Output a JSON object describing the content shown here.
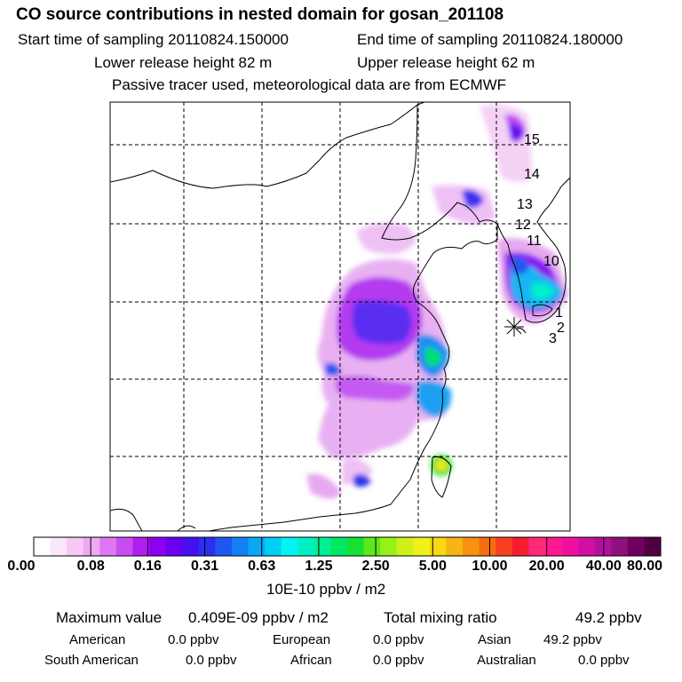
{
  "header": {
    "title": "CO  source contributions in nested domain for gosan_201108",
    "start_label": "Start time of sampling 20110824.150000",
    "end_label": "End time of sampling 20110824.180000",
    "lower_label": "Lower release height   82 m",
    "upper_label": "Upper release height   62 m",
    "tracer_label": "Passive tracer used, meteorological data are from ECMWF"
  },
  "map": {
    "trajectory_labels": [
      "15",
      "14",
      "13",
      "12",
      "11",
      "10",
      "1",
      "2",
      "3"
    ],
    "receptor_marker": "Gosan receptor"
  },
  "colorbar": {
    "labels": [
      "0.00",
      "0.08",
      "0.16",
      "0.31",
      "0.63",
      "1.25",
      "2.50",
      "5.00",
      "10.00",
      "20.00",
      "40.00",
      "80.00"
    ],
    "colors": [
      "#ffffff",
      "#fbe6fb",
      "#f6c8f6",
      "#efa8f2",
      "#de78f2",
      "#c94cf2",
      "#b21ef2",
      "#8d00f0",
      "#6a00f0",
      "#4410f0",
      "#2a2ff2",
      "#1f57f2",
      "#1480f4",
      "#0aa8f4",
      "#00cef4",
      "#00f4f4",
      "#00f0c4",
      "#00f094",
      "#00e860",
      "#18e034",
      "#5ce81c",
      "#98f01a",
      "#cef018",
      "#f0f01a",
      "#f8d810",
      "#f8b410",
      "#f89010",
      "#f86c10",
      "#f84020",
      "#f81c30",
      "#ff2a78",
      "#ff1890",
      "#f010a0",
      "#d010a0",
      "#b0109c",
      "#901080",
      "#700060",
      "#500040"
    ],
    "unit": "10E-10 ppbv / m2"
  },
  "summary": {
    "max_label": "Maximum value",
    "max_value": "0.409E-09 ppbv / m2",
    "total_label": "Total mixing ratio",
    "total_value": "49.2 ppbv",
    "regions": [
      {
        "name": "American",
        "value": "0.0 ppbv"
      },
      {
        "name": "European",
        "value": "0.0 ppbv"
      },
      {
        "name": "Asian",
        "value": "49.2 ppbv"
      },
      {
        "name": "South American",
        "value": "0.0 ppbv"
      },
      {
        "name": "African",
        "value": "0.0 ppbv"
      },
      {
        "name": "Australian",
        "value": "0.0 ppbv"
      }
    ]
  }
}
